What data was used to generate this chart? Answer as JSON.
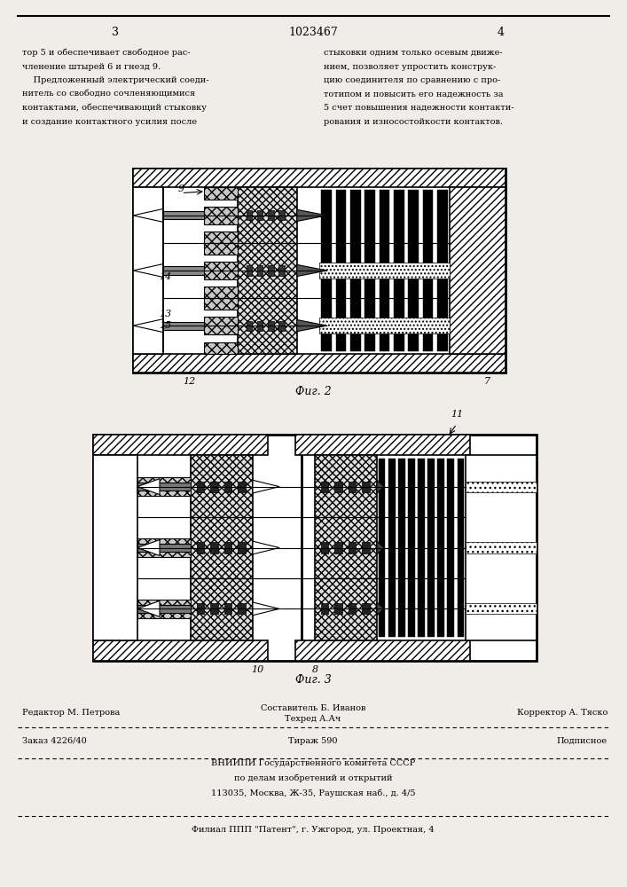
{
  "page_number_left": "3",
  "page_number_center": "1023467",
  "page_number_right": "4",
  "left_text": [
    "тор 5 и обеспечивает свободное рас-",
    "членение штырей 6 и гнезд 9.",
    "    Предложенный электрический соеди-",
    "нитель со свободно сочленяющимися",
    "контактами, обеспечивающий стыковку",
    "и создание контактного усилия после"
  ],
  "right_text": [
    "стыковки одним только осевым движе-",
    "нием, позволяет упростить конструк-",
    "цию соединителя по сравнению с про-",
    "тотипом и повысить его надежность за",
    "5 счет повышения надежности контакти-",
    "рования и износостойкости контактов."
  ],
  "fig2_caption": "Фиг. 2",
  "fig3_caption": "Фиг. 3",
  "bottom_line1_left": "Редактор М. Петрова",
  "bottom_line1_center_top": "Составитель Б. Иванов",
  "bottom_line1_center_bot": "Техред А.Ач",
  "bottom_line1_right": "Корректор А. Тяско",
  "bottom_line2_left": "Заказ 4226/40",
  "bottom_line2_center": "Тираж 590",
  "bottom_line2_right": "Подписное",
  "bottom_line3": "ВНИИПИ Государственного комитета СССР",
  "bottom_line4": "по делам изобретений и открытий",
  "bottom_line5": "113035, Москва, Ж-35, Раушская наб., д. 4/5",
  "bottom_line6": "Филиал ППП \"Патент\", г. Ужгород, ул. Проектная, 4",
  "bg_color": "#f0ede8"
}
